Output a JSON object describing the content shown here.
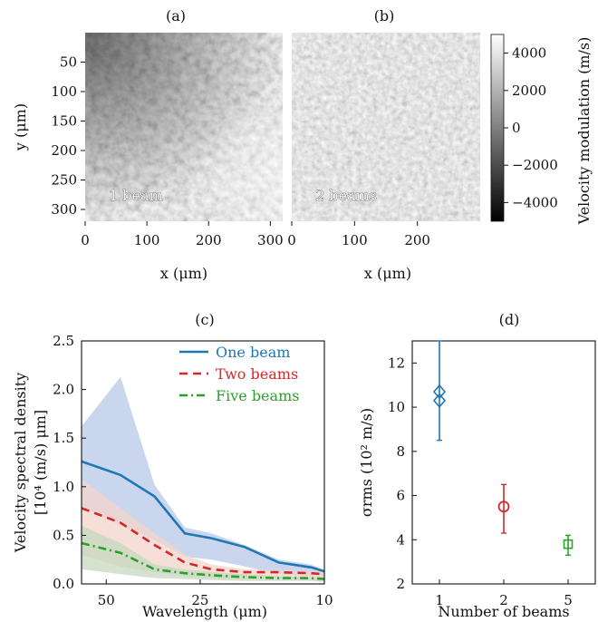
{
  "figure": {
    "panel_labels": [
      "(a)",
      "(b)",
      "(c)",
      "(d)"
    ]
  },
  "chart_data": [
    {
      "type": "heatmap",
      "panel": "(a)",
      "xlabel": "x (μm)",
      "ylabel": "y (μm)",
      "xlim": [
        0,
        320
      ],
      "ylim": [
        320,
        0
      ],
      "xticks": [
        "0",
        "100",
        "200",
        "300"
      ],
      "yticks": [
        "50",
        "100",
        "150",
        "200",
        "250",
        "300"
      ],
      "annotation": "1 beam",
      "colormap": "gray"
    },
    {
      "type": "heatmap",
      "panel": "(b)",
      "xlabel": "x (μm)",
      "xlim": [
        0,
        300
      ],
      "xticks": [
        "0",
        "100",
        "200"
      ],
      "annotation": "2 beams",
      "colormap": "gray",
      "colorbar": {
        "label": "Velocity modulation (m/s)",
        "range": [
          -5000,
          5000
        ],
        "ticks": [
          "4000",
          "2000",
          "0",
          "−2000",
          "−4000"
        ]
      }
    },
    {
      "type": "line",
      "panel": "(c)",
      "xlabel": "Wavelength (μm)",
      "ylabel_line1": "Velocity spectral density",
      "ylabel_line2": "[10⁴ (m/s) μm]",
      "xticks": [
        "50",
        "25",
        "10"
      ],
      "yticks": [
        "0.0",
        "0.5",
        "1.0",
        "1.5",
        "2.0",
        "2.5"
      ],
      "ylim": [
        0,
        2.5
      ],
      "x": [
        60,
        45,
        35,
        28,
        23,
        18,
        14,
        11,
        10
      ],
      "series": [
        {
          "name": "One beam",
          "color": "#1f77b4",
          "values": [
            1.26,
            1.12,
            0.9,
            0.52,
            0.47,
            0.38,
            0.22,
            0.17,
            0.13
          ],
          "band_upper": [
            1.62,
            2.13,
            1.02,
            0.58,
            0.52,
            0.4,
            0.25,
            0.2,
            0.14
          ],
          "band_lower": [
            0.8,
            0.6,
            0.45,
            0.28,
            0.25,
            0.18,
            0.1,
            0.08,
            0.06
          ],
          "band_color": "#b8c8e8"
        },
        {
          "name": "Two beams",
          "color": "#d62728",
          "values": [
            0.78,
            0.63,
            0.4,
            0.22,
            0.15,
            0.12,
            0.12,
            0.11,
            0.1
          ],
          "band_upper": [
            1.08,
            0.78,
            0.52,
            0.3,
            0.2,
            0.15,
            0.14,
            0.13,
            0.12
          ],
          "band_lower": [
            0.3,
            0.18,
            0.12,
            0.08,
            0.06,
            0.05,
            0.05,
            0.04,
            0.04
          ],
          "band_color": "#f4d4cc"
        },
        {
          "name": "Five beams",
          "color": "#2ca02c",
          "values": [
            0.42,
            0.32,
            0.15,
            0.11,
            0.09,
            0.07,
            0.06,
            0.06,
            0.05
          ],
          "band_upper": [
            0.6,
            0.42,
            0.2,
            0.15,
            0.12,
            0.1,
            0.08,
            0.07,
            0.06
          ],
          "band_lower": [
            0.15,
            0.1,
            0.06,
            0.05,
            0.04,
            0.03,
            0.03,
            0.03,
            0.02
          ],
          "band_color": "#c6d8bf"
        }
      ],
      "legend": "top-right"
    },
    {
      "type": "scatter",
      "panel": "(d)",
      "xlabel": "Number of beams",
      "ylabel": "σrms (10² m/s)",
      "categories": [
        "1",
        "2",
        "5"
      ],
      "yticks": [
        "2",
        "4",
        "6",
        "8",
        "10",
        "12"
      ],
      "ylim": [
        2,
        13
      ],
      "points": [
        {
          "category": "1",
          "marker": "diamond",
          "color": "#1f77b4",
          "values": [
            10.7,
            10.3
          ],
          "err_low": 8.5,
          "err_high": 13.0
        },
        {
          "category": "2",
          "marker": "circle",
          "color": "#d62728",
          "values": [
            5.5
          ],
          "err_low": 4.3,
          "err_high": 6.5
        },
        {
          "category": "5",
          "marker": "square",
          "color": "#2ca02c",
          "values": [
            3.8
          ],
          "err_low": 3.3,
          "err_high": 4.2
        }
      ]
    }
  ]
}
